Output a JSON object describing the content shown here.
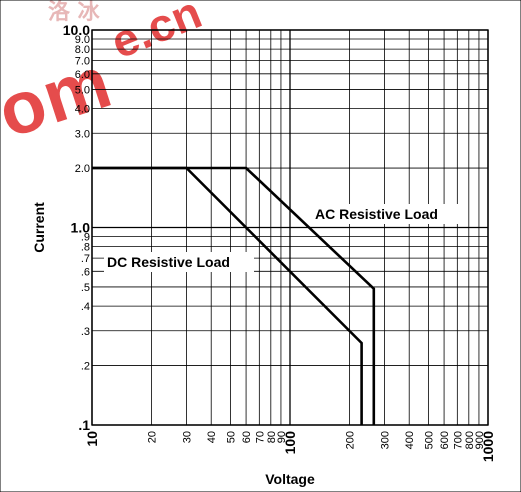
{
  "watermark": {
    "text_top": "e.cn",
    "text_left": "om",
    "text_cjk": "洛 冰"
  },
  "chart_data": {
    "type": "line",
    "title": "",
    "xlabel": "Voltage",
    "ylabel": "Current",
    "x_scale": "log",
    "y_scale": "log",
    "xlim": [
      10,
      1000
    ],
    "ylim": [
      0.1,
      10
    ],
    "grid": true,
    "x_ticks": [
      {
        "v": 10,
        "label": "10",
        "major": true
      },
      {
        "v": 20,
        "label": "20"
      },
      {
        "v": 30,
        "label": "30"
      },
      {
        "v": 40,
        "label": "40"
      },
      {
        "v": 50,
        "label": "50"
      },
      {
        "v": 60,
        "label": "60"
      },
      {
        "v": 70,
        "label": "70"
      },
      {
        "v": 80,
        "label": "80"
      },
      {
        "v": 90,
        "label": "90"
      },
      {
        "v": 100,
        "label": "100",
        "major": true
      },
      {
        "v": 200,
        "label": "200"
      },
      {
        "v": 300,
        "label": "300"
      },
      {
        "v": 400,
        "label": "400"
      },
      {
        "v": 500,
        "label": "500"
      },
      {
        "v": 600,
        "label": "600"
      },
      {
        "v": 700,
        "label": "700"
      },
      {
        "v": 800,
        "label": "800"
      },
      {
        "v": 900,
        "label": "900"
      },
      {
        "v": 1000,
        "label": "1000",
        "major": true
      }
    ],
    "y_ticks": [
      {
        "v": 10,
        "label": "10.0",
        "major": true
      },
      {
        "v": 9,
        "label": "9.0"
      },
      {
        "v": 8,
        "label": "8.0"
      },
      {
        "v": 7,
        "label": "7.0"
      },
      {
        "v": 6,
        "label": "6.0"
      },
      {
        "v": 5,
        "label": "5.0"
      },
      {
        "v": 4,
        "label": "4.0"
      },
      {
        "v": 3,
        "label": "3.0"
      },
      {
        "v": 2,
        "label": "2.0"
      },
      {
        "v": 1,
        "label": "1.0",
        "major": true
      },
      {
        "v": 0.9,
        "label": ".9"
      },
      {
        "v": 0.8,
        "label": ".8"
      },
      {
        "v": 0.7,
        "label": ".7"
      },
      {
        "v": 0.6,
        "label": ".6"
      },
      {
        "v": 0.5,
        "label": ".5"
      },
      {
        "v": 0.4,
        "label": ".4"
      },
      {
        "v": 0.3,
        "label": ".3"
      },
      {
        "v": 0.2,
        "label": ".2"
      },
      {
        "v": 0.1,
        "label": ".1",
        "major": true
      }
    ],
    "series": [
      {
        "name": "DC Resistive Load",
        "points": [
          [
            10,
            2.0
          ],
          [
            30,
            2.0
          ],
          [
            230,
            0.26
          ],
          [
            230,
            0.1
          ]
        ]
      },
      {
        "name": "AC Resistive Load",
        "points": [
          [
            10,
            2.0
          ],
          [
            60,
            2.0
          ],
          [
            265,
            0.49
          ],
          [
            265,
            0.1
          ]
        ]
      }
    ],
    "annotations": [
      {
        "series": 1,
        "text": "AC Resistive Load"
      },
      {
        "series": 0,
        "text": "DC Resistive Load"
      }
    ]
  }
}
